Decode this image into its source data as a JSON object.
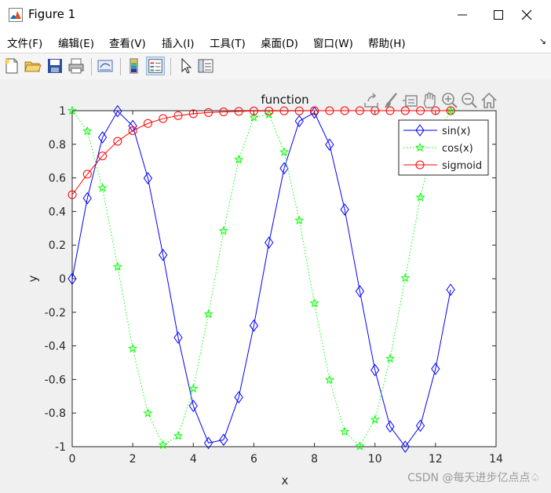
{
  "window": {
    "title": "Figure 1",
    "buttons": [
      "minimize-icon",
      "maximize-icon",
      "close-icon"
    ]
  },
  "menu": {
    "items": [
      "文件(F)",
      "编辑(E)",
      "查看(V)",
      "插入(I)",
      "工具(T)",
      "桌面(D)",
      "窗口(W)",
      "帮助(H)"
    ],
    "overflow_icon": "arrow-icon"
  },
  "toolbar": {
    "icons": [
      "new-figure-icon",
      "open-file-icon",
      "save-icon",
      "print-icon",
      "link-plot-icon",
      "colorbar-icon",
      "legend-icon",
      "pointer-icon",
      "property-inspector-icon"
    ]
  },
  "axes_toolbar": {
    "icons": [
      "export-icon",
      "brush-icon",
      "data-tips-icon",
      "pan-icon",
      "zoom-in-icon",
      "zoom-out-icon",
      "home-icon"
    ]
  },
  "watermark": "CSDN @每天进步亿点点♤",
  "chart_data": {
    "type": "line",
    "title": "function",
    "xlabel": "x",
    "ylabel": "y",
    "xlim": [
      0,
      14
    ],
    "ylim": [
      -1,
      1
    ],
    "xticks": [
      "0",
      "2",
      "4",
      "6",
      "8",
      "10",
      "12",
      "14"
    ],
    "yticks": [
      "-1",
      "-0.8",
      "-0.6",
      "-0.4",
      "-0.2",
      "0",
      "0.2",
      "0.4",
      "0.6",
      "0.8",
      "1"
    ],
    "grid": false,
    "legend_position": "top-right",
    "x": [
      0,
      0.5,
      1,
      1.5,
      2,
      2.5,
      3,
      3.5,
      4,
      4.5,
      5,
      5.5,
      6,
      6.5,
      7,
      7.5,
      8,
      8.5,
      9,
      9.5,
      10,
      10.5,
      11,
      11.5,
      12,
      12.5
    ],
    "series": [
      {
        "name": "sin(x)",
        "color": "#0000ff",
        "line_style": "solid",
        "marker": "diamond",
        "values": [
          0,
          0.479,
          0.841,
          0.997,
          0.909,
          0.598,
          0.141,
          -0.351,
          -0.757,
          -0.978,
          -0.959,
          -0.706,
          -0.279,
          0.215,
          0.657,
          0.938,
          0.989,
          0.798,
          0.412,
          -0.075,
          -0.544,
          -0.88,
          -1.0,
          -0.875,
          -0.537,
          -0.066
        ]
      },
      {
        "name": "cos(x)",
        "color": "#00ff00",
        "line_style": "dotted",
        "marker": "pentagram",
        "values": [
          1,
          0.878,
          0.54,
          0.071,
          -0.416,
          -0.801,
          -0.99,
          -0.936,
          -0.654,
          -0.211,
          0.284,
          0.709,
          0.96,
          0.977,
          0.754,
          0.347,
          -0.146,
          -0.602,
          -0.911,
          -0.997,
          -0.839,
          -0.476,
          0.004,
          0.484,
          0.844,
          0.998
        ]
      },
      {
        "name": "sigmoid",
        "color": "#ff0000",
        "line_style": "solid",
        "marker": "circle",
        "values": [
          0.5,
          0.622,
          0.731,
          0.818,
          0.881,
          0.924,
          0.953,
          0.971,
          0.982,
          0.989,
          0.993,
          0.996,
          0.998,
          0.998,
          0.999,
          0.999,
          1.0,
          1.0,
          1.0,
          1.0,
          1.0,
          1.0,
          1.0,
          1.0,
          1.0,
          1.0
        ]
      }
    ]
  }
}
